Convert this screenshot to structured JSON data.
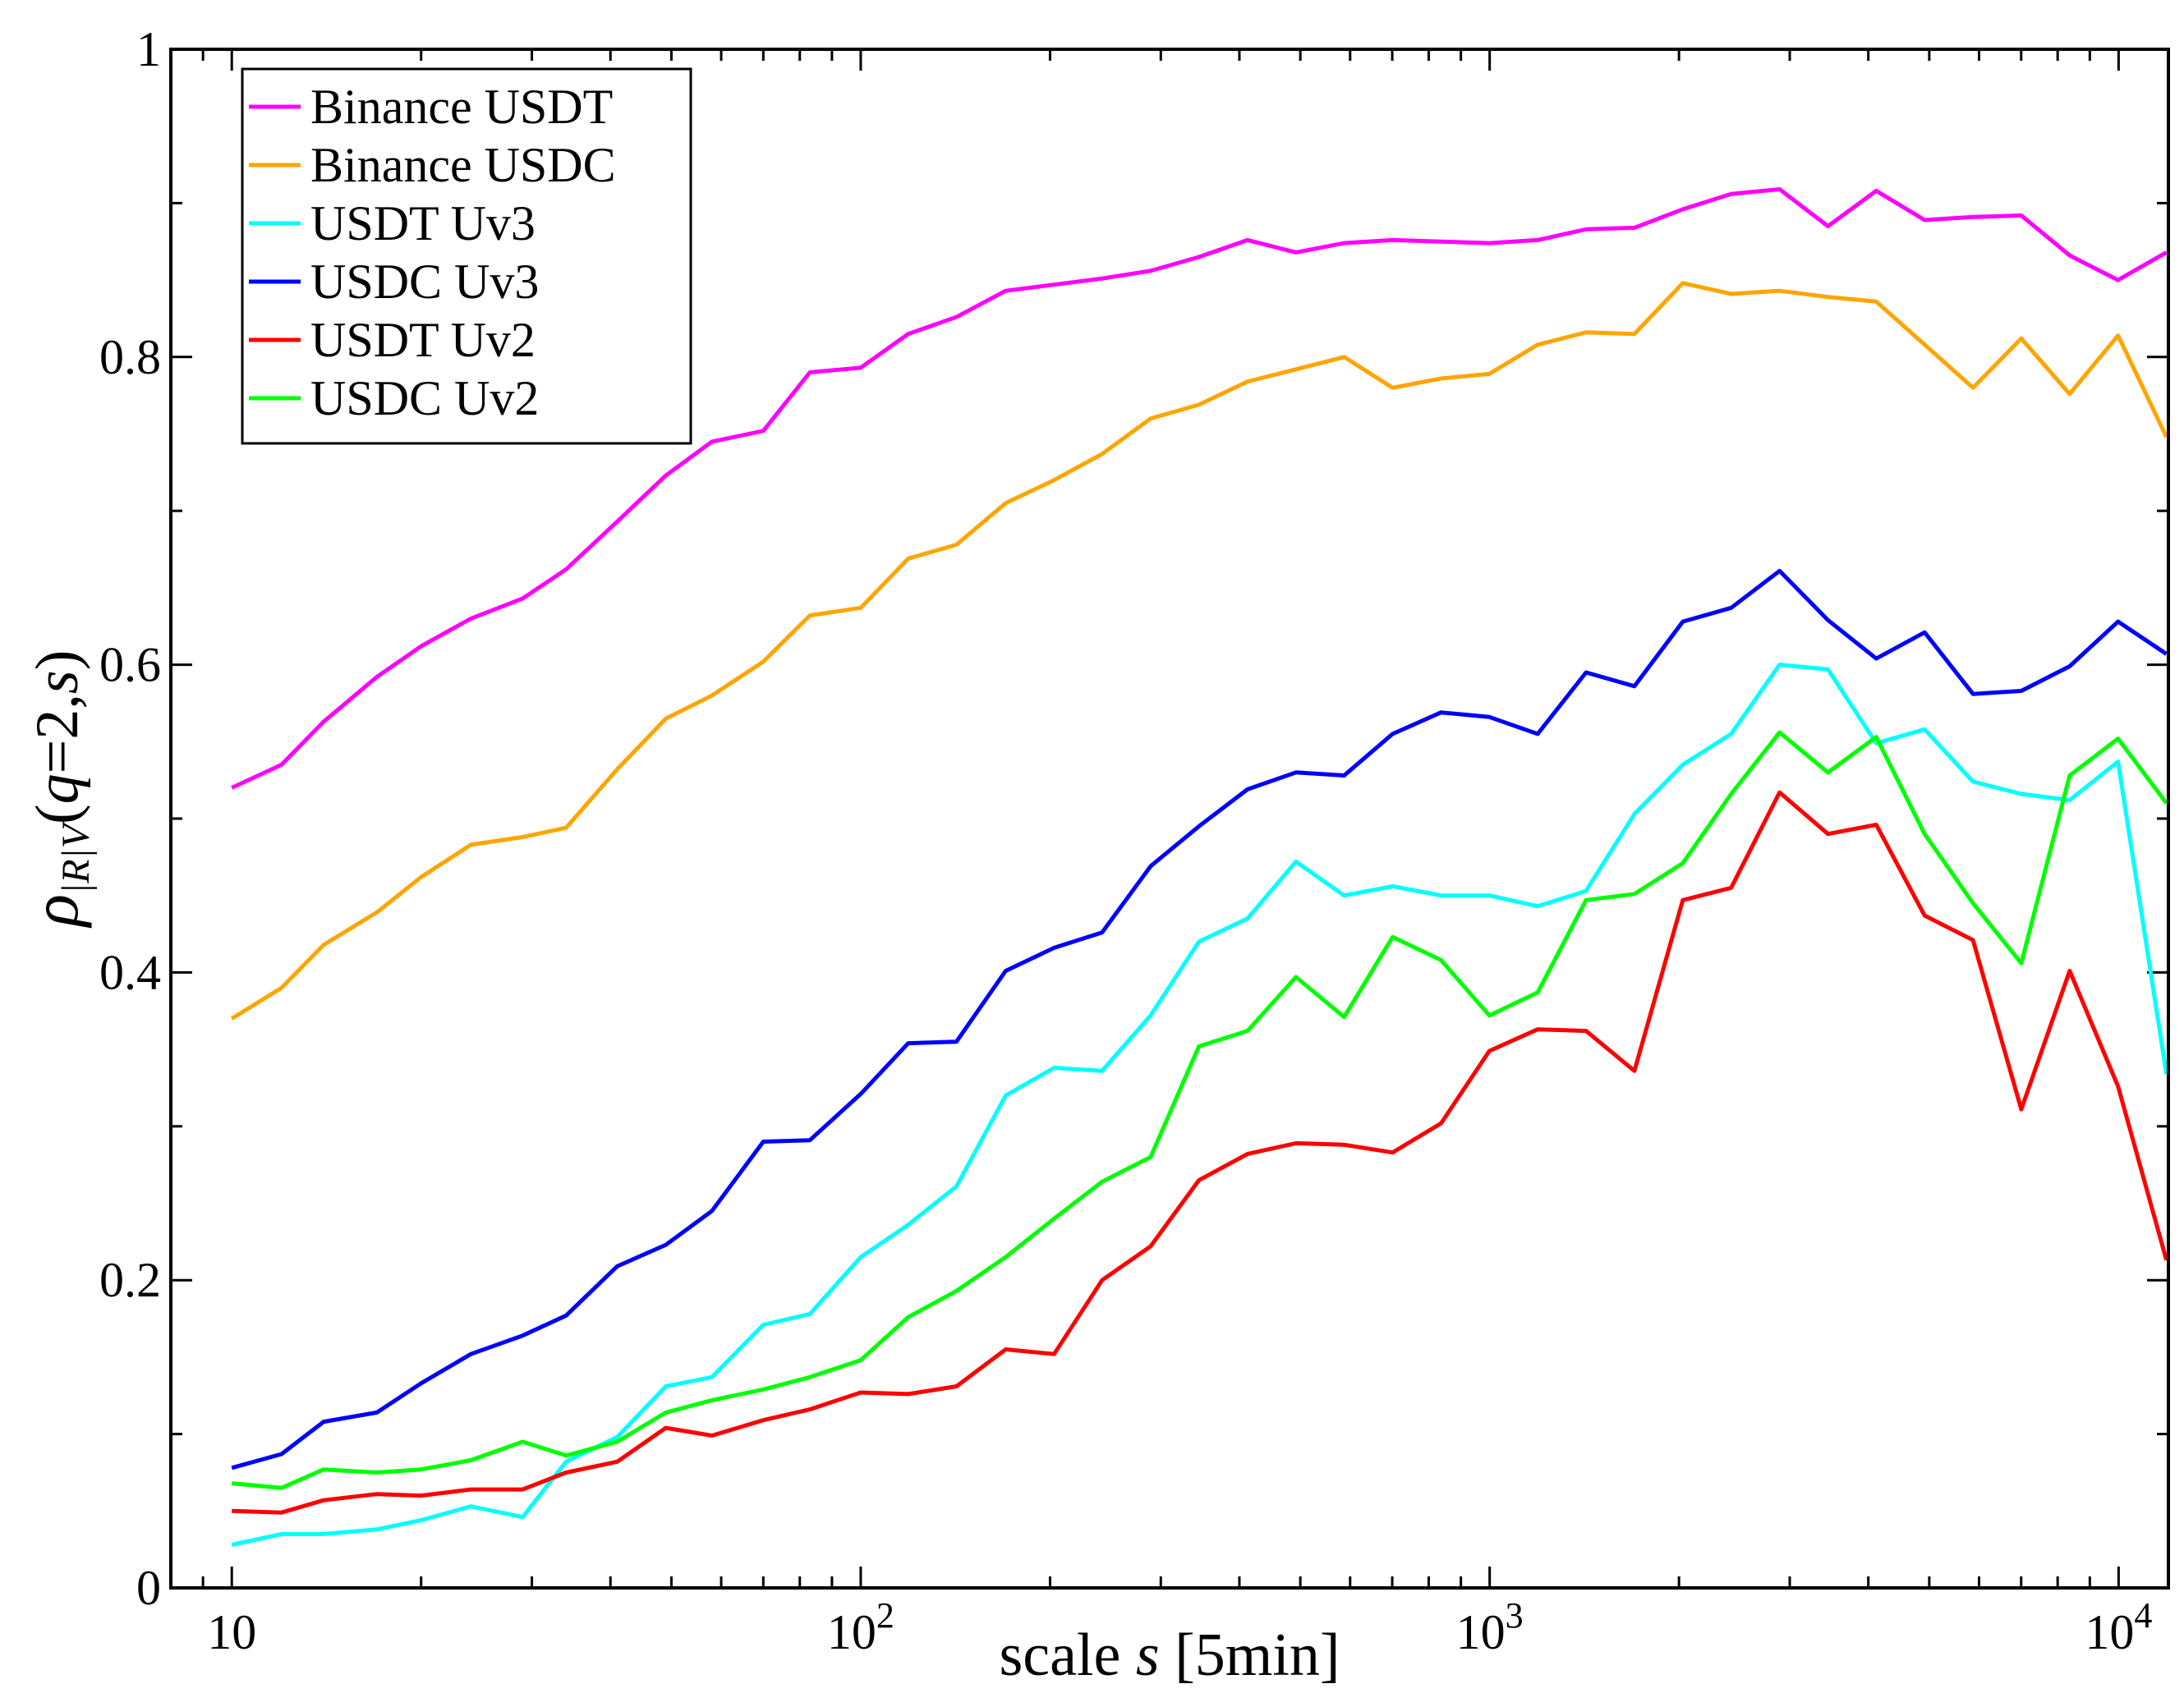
{
  "chart_data": {
    "type": "line",
    "title": "",
    "xscale": "log",
    "xlim": [
      8,
      12000
    ],
    "ylim": [
      0,
      1
    ],
    "x_ticks": [
      {
        "value": 10,
        "base": "10",
        "exp": ""
      },
      {
        "value": 100,
        "base": "10",
        "exp": "2"
      },
      {
        "value": 1000,
        "base": "10",
        "exp": "3"
      },
      {
        "value": 10000,
        "base": "10",
        "exp": "4"
      }
    ],
    "y_ticks": [
      {
        "value": 0,
        "label": "0"
      },
      {
        "value": 0.2,
        "label": "0.2"
      },
      {
        "value": 0.4,
        "label": "0.4"
      },
      {
        "value": 0.6,
        "label": "0.6"
      },
      {
        "value": 0.8,
        "label": "0.8"
      },
      {
        "value": 1,
        "label": "1"
      }
    ],
    "xlabel": {
      "pre": "scale ",
      "var": "s",
      "post": " [5min]"
    },
    "ylabel": {
      "rho": "ρ",
      "sub": "|R|V",
      "open": "(",
      "q": "q",
      "eq": "=2,",
      "s": "s",
      "close": ")"
    },
    "legend_position": "top-left",
    "x": [
      10,
      12,
      14,
      17,
      20,
      24,
      29,
      34,
      41,
      49,
      58,
      70,
      83,
      100,
      119,
      142,
      170,
      203,
      242,
      289,
      345,
      412,
      492,
      587,
      701,
      837,
      999,
      1192,
      1423,
      1699,
      2028,
      2421,
      2890,
      3450,
      4118,
      4915,
      5868,
      7004,
      8361,
      9980,
      11913
    ],
    "series": [
      {
        "name": "Binance USDT",
        "color": "#ff00ff",
        "values": [
          0.52,
          0.535,
          0.563,
          0.592,
          0.612,
          0.63,
          0.643,
          0.662,
          0.693,
          0.723,
          0.745,
          0.752,
          0.79,
          0.793,
          0.815,
          0.826,
          0.843,
          0.847,
          0.851,
          0.856,
          0.865,
          0.876,
          0.868,
          0.874,
          0.876,
          0.875,
          0.874,
          0.876,
          0.883,
          0.884,
          0.896,
          0.906,
          0.909,
          0.885,
          0.908,
          0.889,
          0.891,
          0.892,
          0.866,
          0.85,
          0.868
        ]
      },
      {
        "name": "Binance USDC",
        "color": "#ffa500",
        "values": [
          0.37,
          0.39,
          0.418,
          0.439,
          0.462,
          0.483,
          0.488,
          0.494,
          0.532,
          0.565,
          0.58,
          0.602,
          0.632,
          0.637,
          0.669,
          0.678,
          0.705,
          0.72,
          0.737,
          0.76,
          0.769,
          0.784,
          0.792,
          0.8,
          0.78,
          0.786,
          0.789,
          0.808,
          0.816,
          0.815,
          0.848,
          0.841,
          0.843,
          0.839,
          0.836,
          0.808,
          0.78,
          0.812,
          0.776,
          0.814,
          0.748
        ]
      },
      {
        "name": "USDT Uv3",
        "color": "#00ffff",
        "values": [
          0.028,
          0.035,
          0.035,
          0.038,
          0.044,
          0.053,
          0.046,
          0.082,
          0.098,
          0.131,
          0.137,
          0.171,
          0.178,
          0.215,
          0.236,
          0.261,
          0.32,
          0.338,
          0.336,
          0.372,
          0.42,
          0.435,
          0.472,
          0.45,
          0.456,
          0.45,
          0.45,
          0.443,
          0.453,
          0.503,
          0.535,
          0.555,
          0.6,
          0.597,
          0.549,
          0.558,
          0.524,
          0.516,
          0.512,
          0.537,
          0.334
        ]
      },
      {
        "name": "USDC Uv3",
        "color": "#0000ff",
        "values": [
          0.078,
          0.087,
          0.108,
          0.114,
          0.133,
          0.152,
          0.164,
          0.177,
          0.209,
          0.223,
          0.245,
          0.29,
          0.291,
          0.321,
          0.354,
          0.355,
          0.401,
          0.416,
          0.426,
          0.469,
          0.495,
          0.519,
          0.53,
          0.528,
          0.555,
          0.569,
          0.566,
          0.555,
          0.595,
          0.586,
          0.628,
          0.637,
          0.661,
          0.629,
          0.604,
          0.621,
          0.581,
          0.583,
          0.599,
          0.628,
          0.607
        ]
      },
      {
        "name": "USDT Uv2",
        "color": "#ff0000",
        "values": [
          0.05,
          0.049,
          0.057,
          0.061,
          0.06,
          0.064,
          0.064,
          0.075,
          0.082,
          0.104,
          0.099,
          0.109,
          0.116,
          0.127,
          0.126,
          0.131,
          0.155,
          0.152,
          0.2,
          0.222,
          0.265,
          0.282,
          0.289,
          0.288,
          0.283,
          0.302,
          0.349,
          0.363,
          0.362,
          0.336,
          0.447,
          0.455,
          0.517,
          0.49,
          0.496,
          0.437,
          0.421,
          0.311,
          0.401,
          0.326,
          0.213
        ]
      },
      {
        "name": "USDC Uv2",
        "color": "#00ff00",
        "values": [
          0.068,
          0.065,
          0.077,
          0.075,
          0.077,
          0.083,
          0.095,
          0.086,
          0.095,
          0.114,
          0.122,
          0.129,
          0.137,
          0.148,
          0.176,
          0.193,
          0.215,
          0.24,
          0.264,
          0.28,
          0.352,
          0.362,
          0.397,
          0.371,
          0.423,
          0.408,
          0.372,
          0.387,
          0.447,
          0.451,
          0.471,
          0.516,
          0.556,
          0.53,
          0.553,
          0.49,
          0.445,
          0.406,
          0.528,
          0.552,
          0.51
        ]
      }
    ]
  }
}
